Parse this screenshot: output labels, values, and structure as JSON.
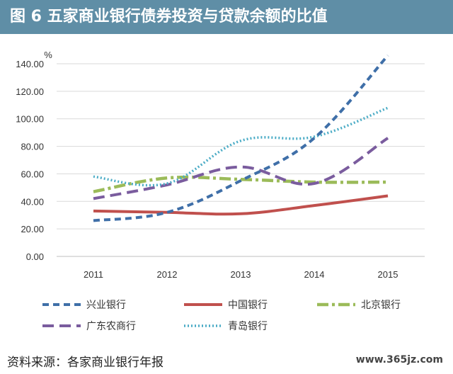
{
  "header": {
    "title": "图 6  五家商业银行债券投资与贷款余额的比值"
  },
  "footer": {
    "source": "资料来源：各家商业银行年报",
    "watermark": "www.365jz.com"
  },
  "chart_data": {
    "type": "line",
    "title": "",
    "xlabel": "",
    "ylabel": "%",
    "categories": [
      "2011",
      "2012",
      "2013",
      "2014",
      "2015"
    ],
    "ylim": [
      0,
      140
    ],
    "yticks": [
      "0.00",
      "20.00",
      "40.00",
      "60.00",
      "80.00",
      "100.00",
      "120.00",
      "140.00"
    ],
    "grid": "horizontal",
    "legend_position": "bottom",
    "series": [
      {
        "name": "兴业银行",
        "values": [
          26,
          32,
          55,
          86,
          146
        ],
        "color": "#3f6fa8",
        "dash": "9,6",
        "width": 4
      },
      {
        "name": "中国银行",
        "values": [
          33,
          32,
          31,
          37,
          44
        ],
        "color": "#c0504d",
        "dash": "",
        "width": 4
      },
      {
        "name": "北京银行",
        "values": [
          47,
          57,
          56,
          54,
          54
        ],
        "color": "#9bbb59",
        "dash": "16,5,4,5",
        "width": 4.5
      },
      {
        "name": "广东农商行",
        "values": [
          42,
          52,
          65,
          53,
          86
        ],
        "color": "#7a5c9e",
        "dash": "16,8",
        "width": 4
      },
      {
        "name": "青岛银行",
        "values": [
          58,
          53,
          84,
          87,
          108
        ],
        "color": "#4bacc6",
        "dash": "2,3",
        "width": 3.5
      }
    ]
  }
}
